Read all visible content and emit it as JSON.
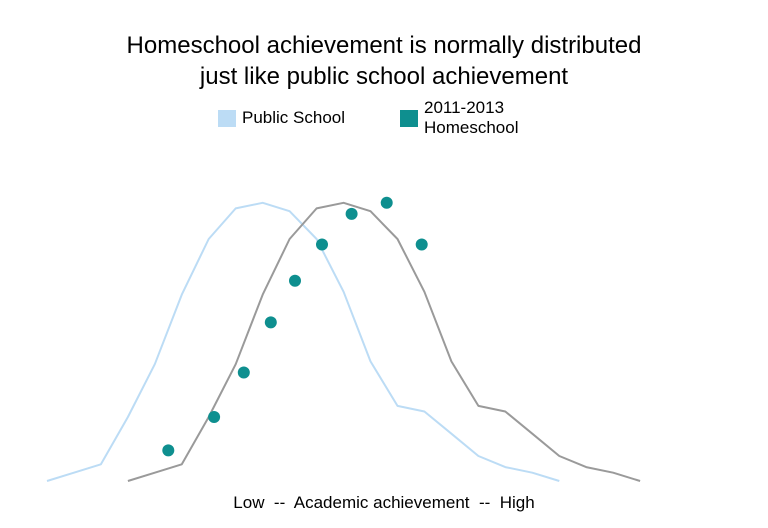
{
  "chart_data": {
    "type": "line",
    "title": [
      "Homeschool achievement is normally distributed",
      "just like public school achievement"
    ],
    "xlabel": "Low  --  Academic achievement  --  High",
    "ylabel": "",
    "grid": false,
    "legend_position": "top",
    "series": [
      {
        "name": "Public School",
        "color": "#bcdcf5",
        "style": "line",
        "x": [
          0,
          1,
          2,
          3,
          4,
          5,
          6,
          7,
          8,
          9,
          10,
          11,
          12,
          13,
          14,
          15,
          16,
          17,
          18,
          19
        ],
        "y": [
          0.0,
          0.03,
          0.06,
          0.23,
          0.42,
          0.67,
          0.87,
          0.98,
          1.0,
          0.97,
          0.87,
          0.68,
          0.43,
          0.27,
          0.25,
          0.17,
          0.09,
          0.05,
          0.03,
          0.0
        ]
      },
      {
        "name": "2011-2013 Homeschool",
        "color": "#9a9a9a",
        "style": "line",
        "x": [
          3,
          4,
          5,
          6,
          7,
          8,
          9,
          10,
          11,
          12,
          13,
          14,
          15,
          16,
          17,
          18,
          19,
          20,
          21,
          22
        ],
        "y": [
          0.0,
          0.03,
          0.06,
          0.23,
          0.42,
          0.67,
          0.87,
          0.98,
          1.0,
          0.97,
          0.87,
          0.68,
          0.43,
          0.27,
          0.25,
          0.17,
          0.09,
          0.05,
          0.03,
          0.0
        ]
      },
      {
        "name": "2011-2013 Homeschool",
        "color": "#0e8f8f",
        "style": "points",
        "x": [
          4.5,
          6.2,
          7.3,
          8.3,
          9.2,
          10.2,
          11.3,
          12.6,
          13.9
        ],
        "y": [
          0.11,
          0.23,
          0.39,
          0.57,
          0.72,
          0.85,
          0.96,
          1.0,
          0.85
        ]
      }
    ],
    "xlim": [
      -1,
      26
    ],
    "ylim": [
      0,
      1.1
    ]
  },
  "legend": {
    "public_label": "Public School",
    "public_color": "#bcdcf5",
    "home_label": "2011-2013 Homeschool",
    "home_color": "#0e8f8f"
  }
}
